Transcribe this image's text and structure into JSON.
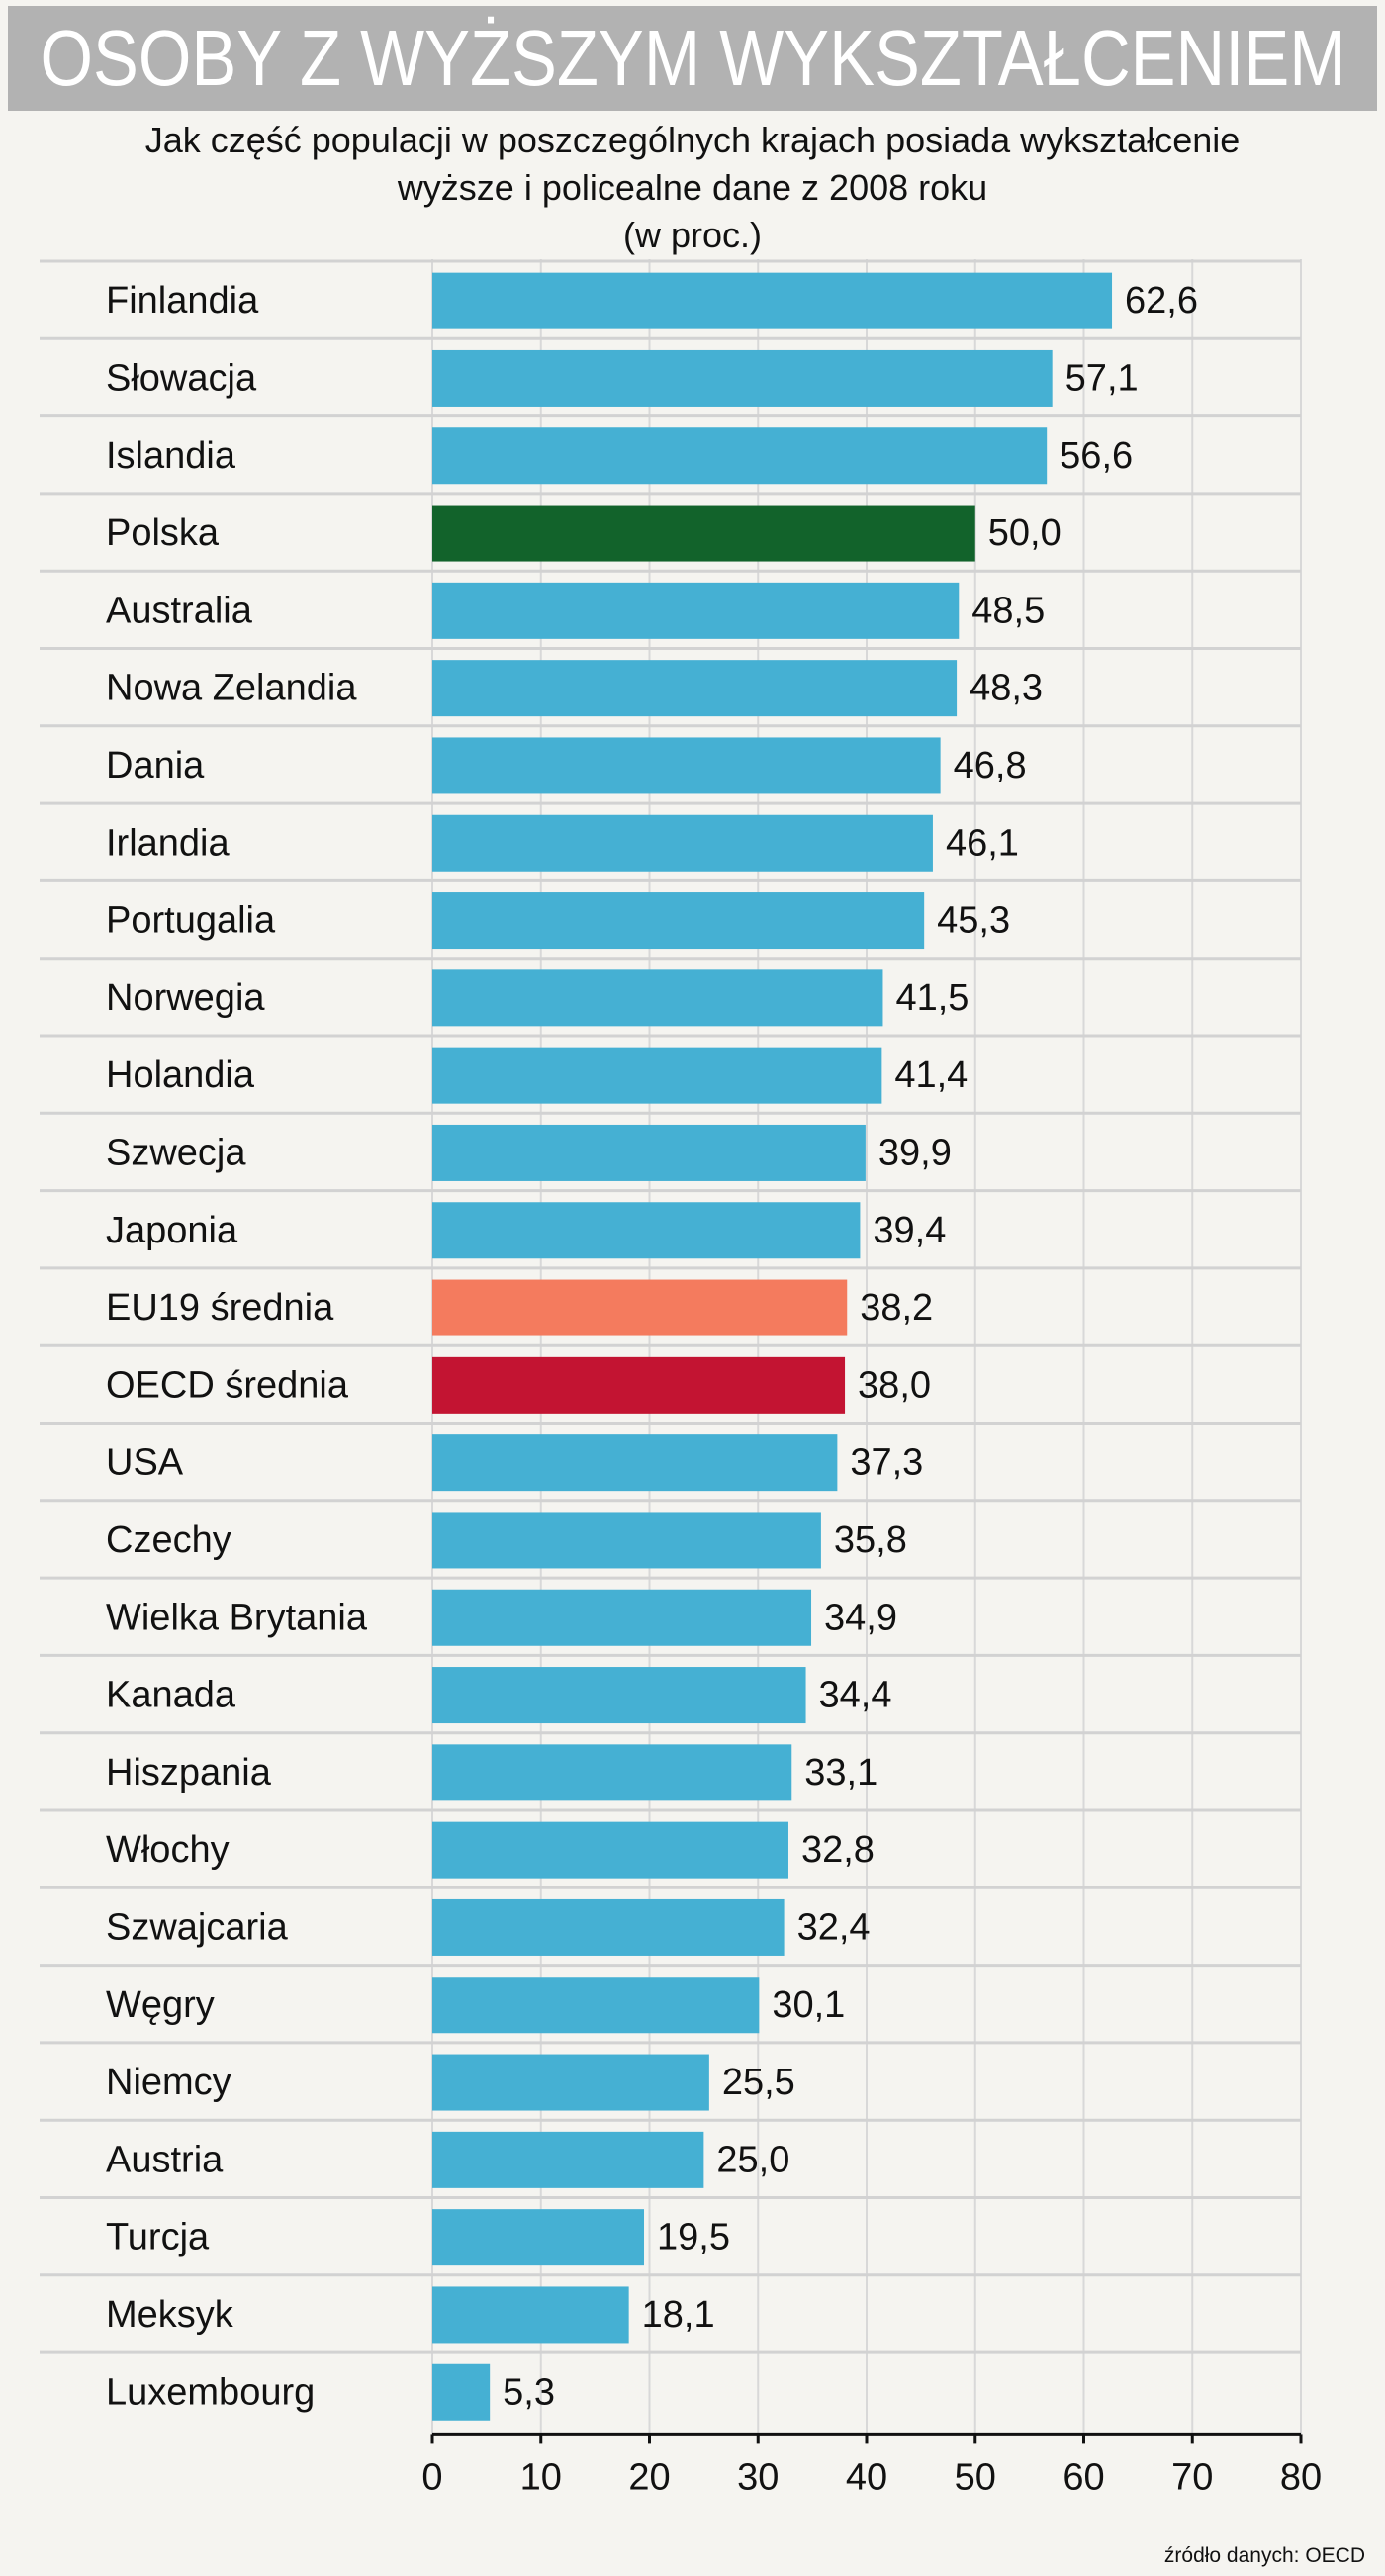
{
  "title": "OSOBY Z WYŻSZYM WYKSZTAŁCENIEM",
  "subtitle": {
    "line1": "Jak część populacji w poszczególnych krajach posiada wykształcenie",
    "line2": "wyższe i policealne dane z 2008 roku",
    "line3": "(w proc.)"
  },
  "source": "źródło danych: OECD",
  "colors": {
    "default": "#45b0d3",
    "polska": "#12632b",
    "eu19": "#f47b5e",
    "oecd": "#c31432",
    "background": "#f5f4f0",
    "title_bar": "#b2b2b2"
  },
  "chart_data": {
    "type": "bar",
    "orientation": "horizontal",
    "title": "OSOBY Z WYŻSZYM WYKSZTAŁCENIEM",
    "xlabel": "",
    "ylabel": "",
    "xlim": [
      0,
      80
    ],
    "xticks": [
      "0",
      "10",
      "20",
      "30",
      "40",
      "50",
      "60",
      "70",
      "80"
    ],
    "categories": [
      "Finlandia",
      "Słowacja",
      "Islandia",
      "Polska",
      "Australia",
      "Nowa Zelandia",
      "Dania",
      "Irlandia",
      "Portugalia",
      "Norwegia",
      "Holandia",
      "Szwecja",
      "Japonia",
      "EU19  średnia",
      "OECD średnia",
      "USA",
      "Czechy",
      "Wielka Brytania",
      "Kanada",
      "Hiszpania",
      "Włochy",
      "Szwajcaria",
      "Węgry",
      "Niemcy",
      "Austria",
      "Turcja",
      "Meksyk",
      "Luxembourg"
    ],
    "values": [
      62.6,
      57.1,
      56.6,
      50.0,
      48.5,
      48.3,
      46.8,
      46.1,
      45.3,
      41.5,
      41.4,
      39.9,
      39.4,
      38.2,
      38.0,
      37.3,
      35.8,
      34.9,
      34.4,
      33.1,
      32.8,
      32.4,
      30.1,
      25.5,
      25.0,
      19.5,
      18.1,
      5.3
    ],
    "value_labels": [
      "62,6",
      "57,1",
      "56,6",
      "50,0",
      "48,5",
      "48,3",
      "46,8",
      "46,1",
      "45,3",
      "41,5",
      "41,4",
      "39,9",
      "39,4",
      "38,2",
      "38,0",
      "37,3",
      "35,8",
      "34,9",
      "34,4",
      "33,1",
      "32,8",
      "32,4",
      "30,1",
      "25,5",
      "25,0",
      "19,5",
      "18,1",
      "5,3"
    ],
    "bar_colors": [
      "default",
      "default",
      "default",
      "polska",
      "default",
      "default",
      "default",
      "default",
      "default",
      "default",
      "default",
      "default",
      "default",
      "eu19",
      "oecd",
      "default",
      "default",
      "default",
      "default",
      "default",
      "default",
      "default",
      "default",
      "default",
      "default",
      "default",
      "default",
      "default"
    ],
    "grid": "vertical"
  }
}
